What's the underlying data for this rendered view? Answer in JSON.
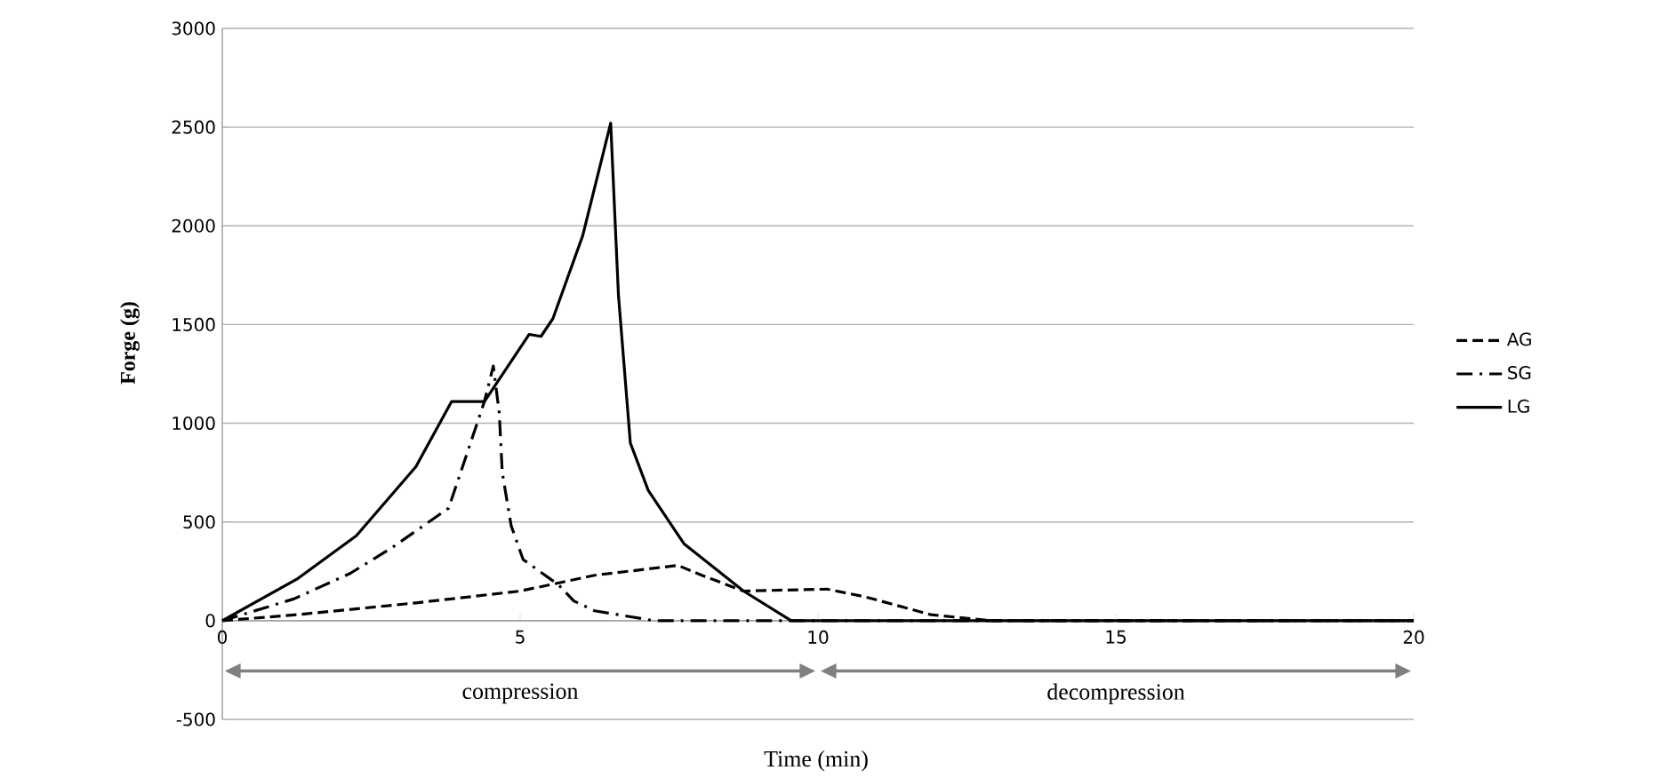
{
  "chart_data": {
    "type": "line",
    "xlabel": "Time (min)",
    "ylabel": "Forge (g)",
    "xlim": [
      0,
      20
    ],
    "xticks": [
      0,
      5,
      10,
      15,
      20
    ],
    "ylim": [
      -500,
      3000
    ],
    "yticks": [
      -500,
      0,
      500,
      1000,
      1500,
      2000,
      2500,
      3000
    ],
    "grid": "y",
    "legend": "right",
    "marker": "none",
    "annotations": [
      "compression",
      "decompression"
    ],
    "series": [
      {
        "name": "AG",
        "color": "#000000",
        "line_style": "dashed",
        "x": [
          0,
          1.25,
          3.25,
          5,
          6.25,
          7.65,
          8.05,
          8.75,
          10.15,
          10.8,
          11.9,
          12.9,
          20
        ],
        "values": [
          0,
          30,
          90,
          150,
          230,
          280,
          230,
          150,
          160,
          120,
          30,
          0,
          0
        ]
      },
      {
        "name": "SG",
        "color": "#000000",
        "line_style": "dashdotted",
        "x": [
          0,
          1.2,
          2.15,
          2.85,
          3.8,
          4.2,
          4.4,
          4.55,
          4.65,
          4.7,
          4.85,
          5.05,
          5.65,
          5.9,
          6.25,
          7.25,
          20
        ],
        "values": [
          0,
          110,
          240,
          370,
          570,
          930,
          1110,
          1290,
          1050,
          750,
          480,
          310,
          180,
          100,
          50,
          0,
          0
        ]
      },
      {
        "name": "LG",
        "color": "#000000",
        "line_style": "solid",
        "x": [
          0,
          1.25,
          2.25,
          3.25,
          3.85,
          4.4,
          5.15,
          5.35,
          5.55,
          6.05,
          6.52,
          6.65,
          6.85,
          7.15,
          7.75,
          8.75,
          9.55,
          20
        ],
        "values": [
          0,
          210,
          430,
          780,
          1110,
          1110,
          1450,
          1440,
          1530,
          1950,
          2520,
          1650,
          900,
          660,
          390,
          150,
          0,
          0
        ]
      }
    ]
  }
}
